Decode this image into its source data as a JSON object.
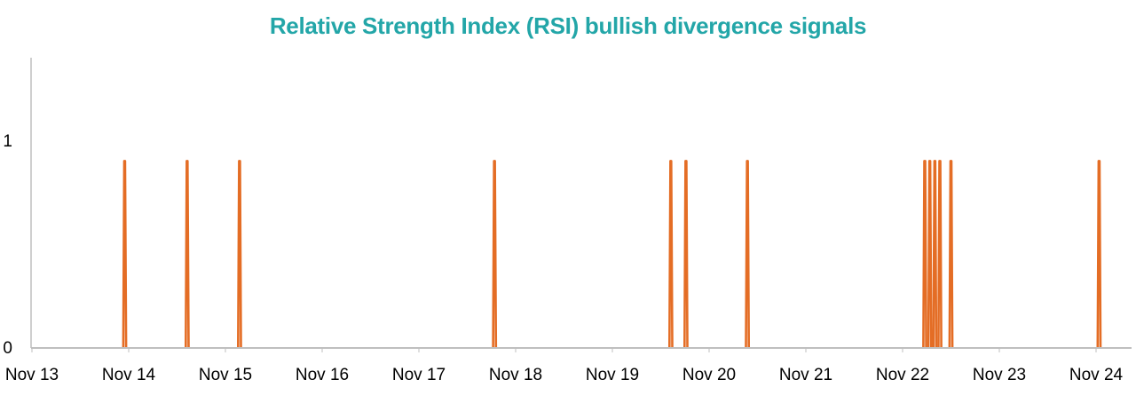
{
  "chart_data": {
    "type": "line",
    "title": "Relative Strength Index (RSI) bullish divergence signals",
    "xlabel": "",
    "ylabel": "",
    "x_ticks": [
      "Nov 13",
      "Nov 14",
      "Nov 15",
      "Nov 16",
      "Nov 17",
      "Nov 18",
      "Nov 19",
      "Nov 20",
      "Nov 21",
      "Nov 22",
      "Nov 23",
      "Nov 24"
    ],
    "y_ticks": [
      "0",
      "1"
    ],
    "xlim": [
      "Nov 13",
      "Nov 24 (+0.35 day)"
    ],
    "ylim": [
      0,
      1.4
    ],
    "grid": false,
    "legend": "none",
    "series": [
      {
        "signal_value": 0.9,
        "signals": [
          "Nov 13 23:00",
          "Nov 14 14:30",
          "Nov 15 03:30",
          "Nov 17 18:45",
          "Nov 19 14:30",
          "Nov 19 18:15",
          "Nov 20 09:30",
          "Nov 22 05:30",
          "Nov 22 06:45",
          "Nov 22 08:00",
          "Nov 22 09:15",
          "Nov 22 12:00",
          "Nov 24 00:45"
        ]
      }
    ],
    "colors": {
      "title": "#23a6a8",
      "line": "#e46d25",
      "axis": "#bfbfbf"
    }
  }
}
